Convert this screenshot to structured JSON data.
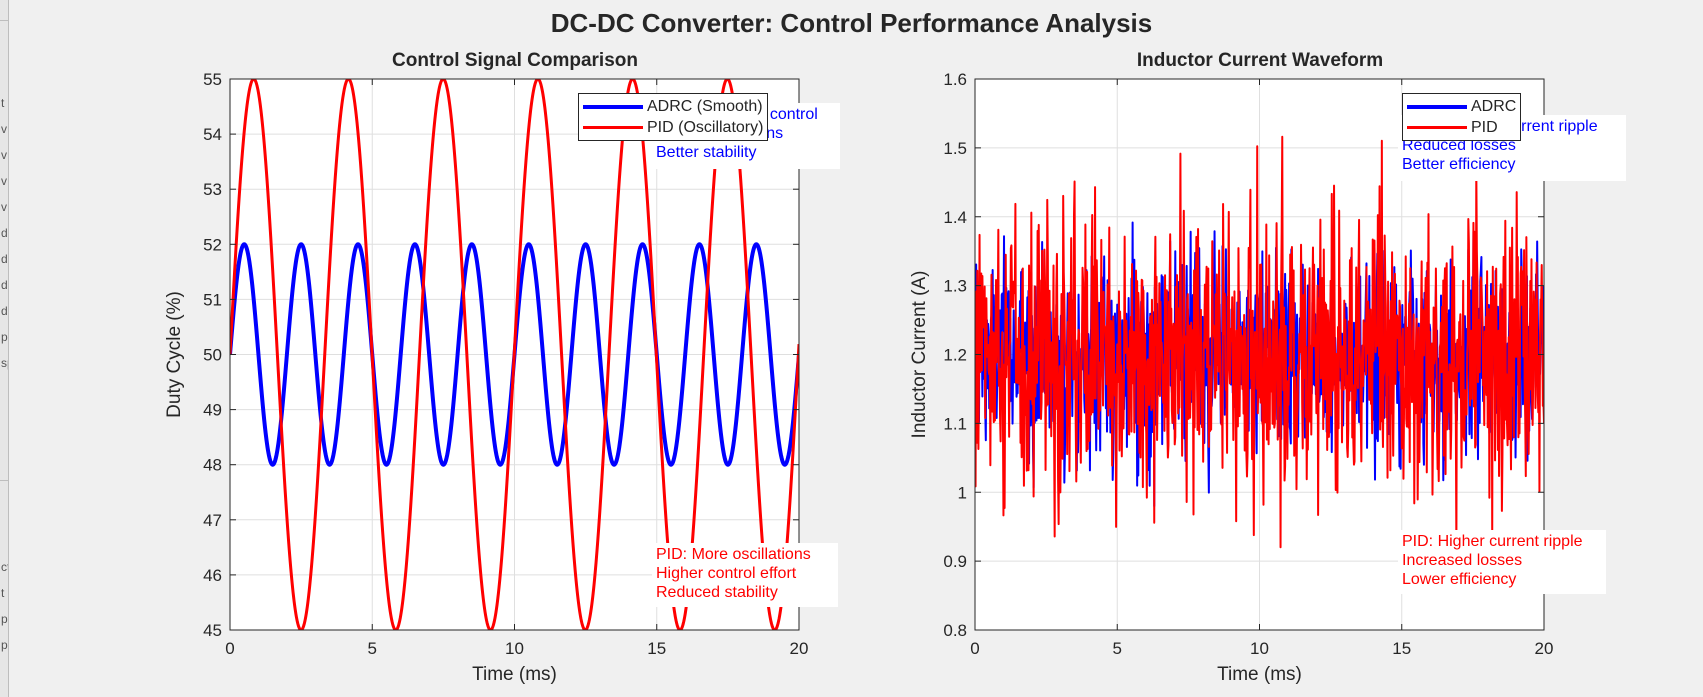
{
  "figure": {
    "title": "DC-DC Converter: Control Performance Analysis",
    "sidebar_fragments": [
      "t",
      "v",
      "v",
      "v",
      "v",
      "d",
      "d",
      "d",
      "d",
      "p",
      "sp",
      "ct",
      "t",
      "pa",
      "pa"
    ]
  },
  "colors": {
    "adrc": "#0000ff",
    "pid": "#ff0000",
    "grid": "#dfdfdf",
    "axis": "#262626"
  },
  "chart_data": [
    {
      "type": "line",
      "title": "Control Signal Comparison",
      "xlabel": "Time (ms)",
      "ylabel": "Duty Cycle (%)",
      "xlim": [
        0,
        20
      ],
      "ylim": [
        45,
        55
      ],
      "xticks": [
        "0",
        "5",
        "10",
        "15",
        "20"
      ],
      "yticks": [
        "45",
        "46",
        "47",
        "48",
        "49",
        "50",
        "51",
        "52",
        "53",
        "54",
        "55"
      ],
      "grid": true,
      "legend_position": "top-right",
      "series": [
        {
          "name": "ADRC (Smooth)",
          "color": "#0000ff",
          "model": "sine",
          "offset": 50,
          "amplitude": 2,
          "period_ms": 2.0,
          "linewidth": 4
        },
        {
          "name": "PID (Oscillatory)",
          "color": "#ff0000",
          "model": "sine",
          "offset": 50,
          "amplitude": 5,
          "period_ms": 3.33,
          "linewidth": 3
        }
      ],
      "annotations": {
        "adrc": [
          "ADRC: Smooth control",
          "Fewer oscillations",
          "Better stability"
        ],
        "pid": [
          "PID: More oscillations",
          "Higher control effort",
          "Reduced stability"
        ]
      }
    },
    {
      "type": "line",
      "title": "Inductor Current Waveform",
      "xlabel": "Time (ms)",
      "ylabel": "Inductor Current (A)",
      "xlim": [
        0,
        20
      ],
      "ylim": [
        0.8,
        1.6
      ],
      "xticks": [
        "0",
        "5",
        "10",
        "15",
        "20"
      ],
      "yticks": [
        "0.8",
        "0.9",
        "1",
        "1.1",
        "1.2",
        "1.3",
        "1.4",
        "1.5",
        "1.6"
      ],
      "grid": true,
      "legend_position": "top-right",
      "series": [
        {
          "name": "ADRC",
          "color": "#0000ff",
          "model": "noise",
          "mean": 1.2,
          "ripple_std": 0.07,
          "samples": 1000,
          "linewidth": 2
        },
        {
          "name": "PID",
          "color": "#ff0000",
          "model": "noise",
          "mean": 1.2,
          "ripple_std": 0.1,
          "samples": 1000,
          "linewidth": 2
        }
      ],
      "annotations": {
        "adrc": [
          "ADRC: Lower current ripple",
          "Reduced losses",
          "Better efficiency"
        ],
        "pid": [
          "PID: Higher current ripple",
          "Increased losses",
          "Lower efficiency"
        ]
      }
    }
  ]
}
